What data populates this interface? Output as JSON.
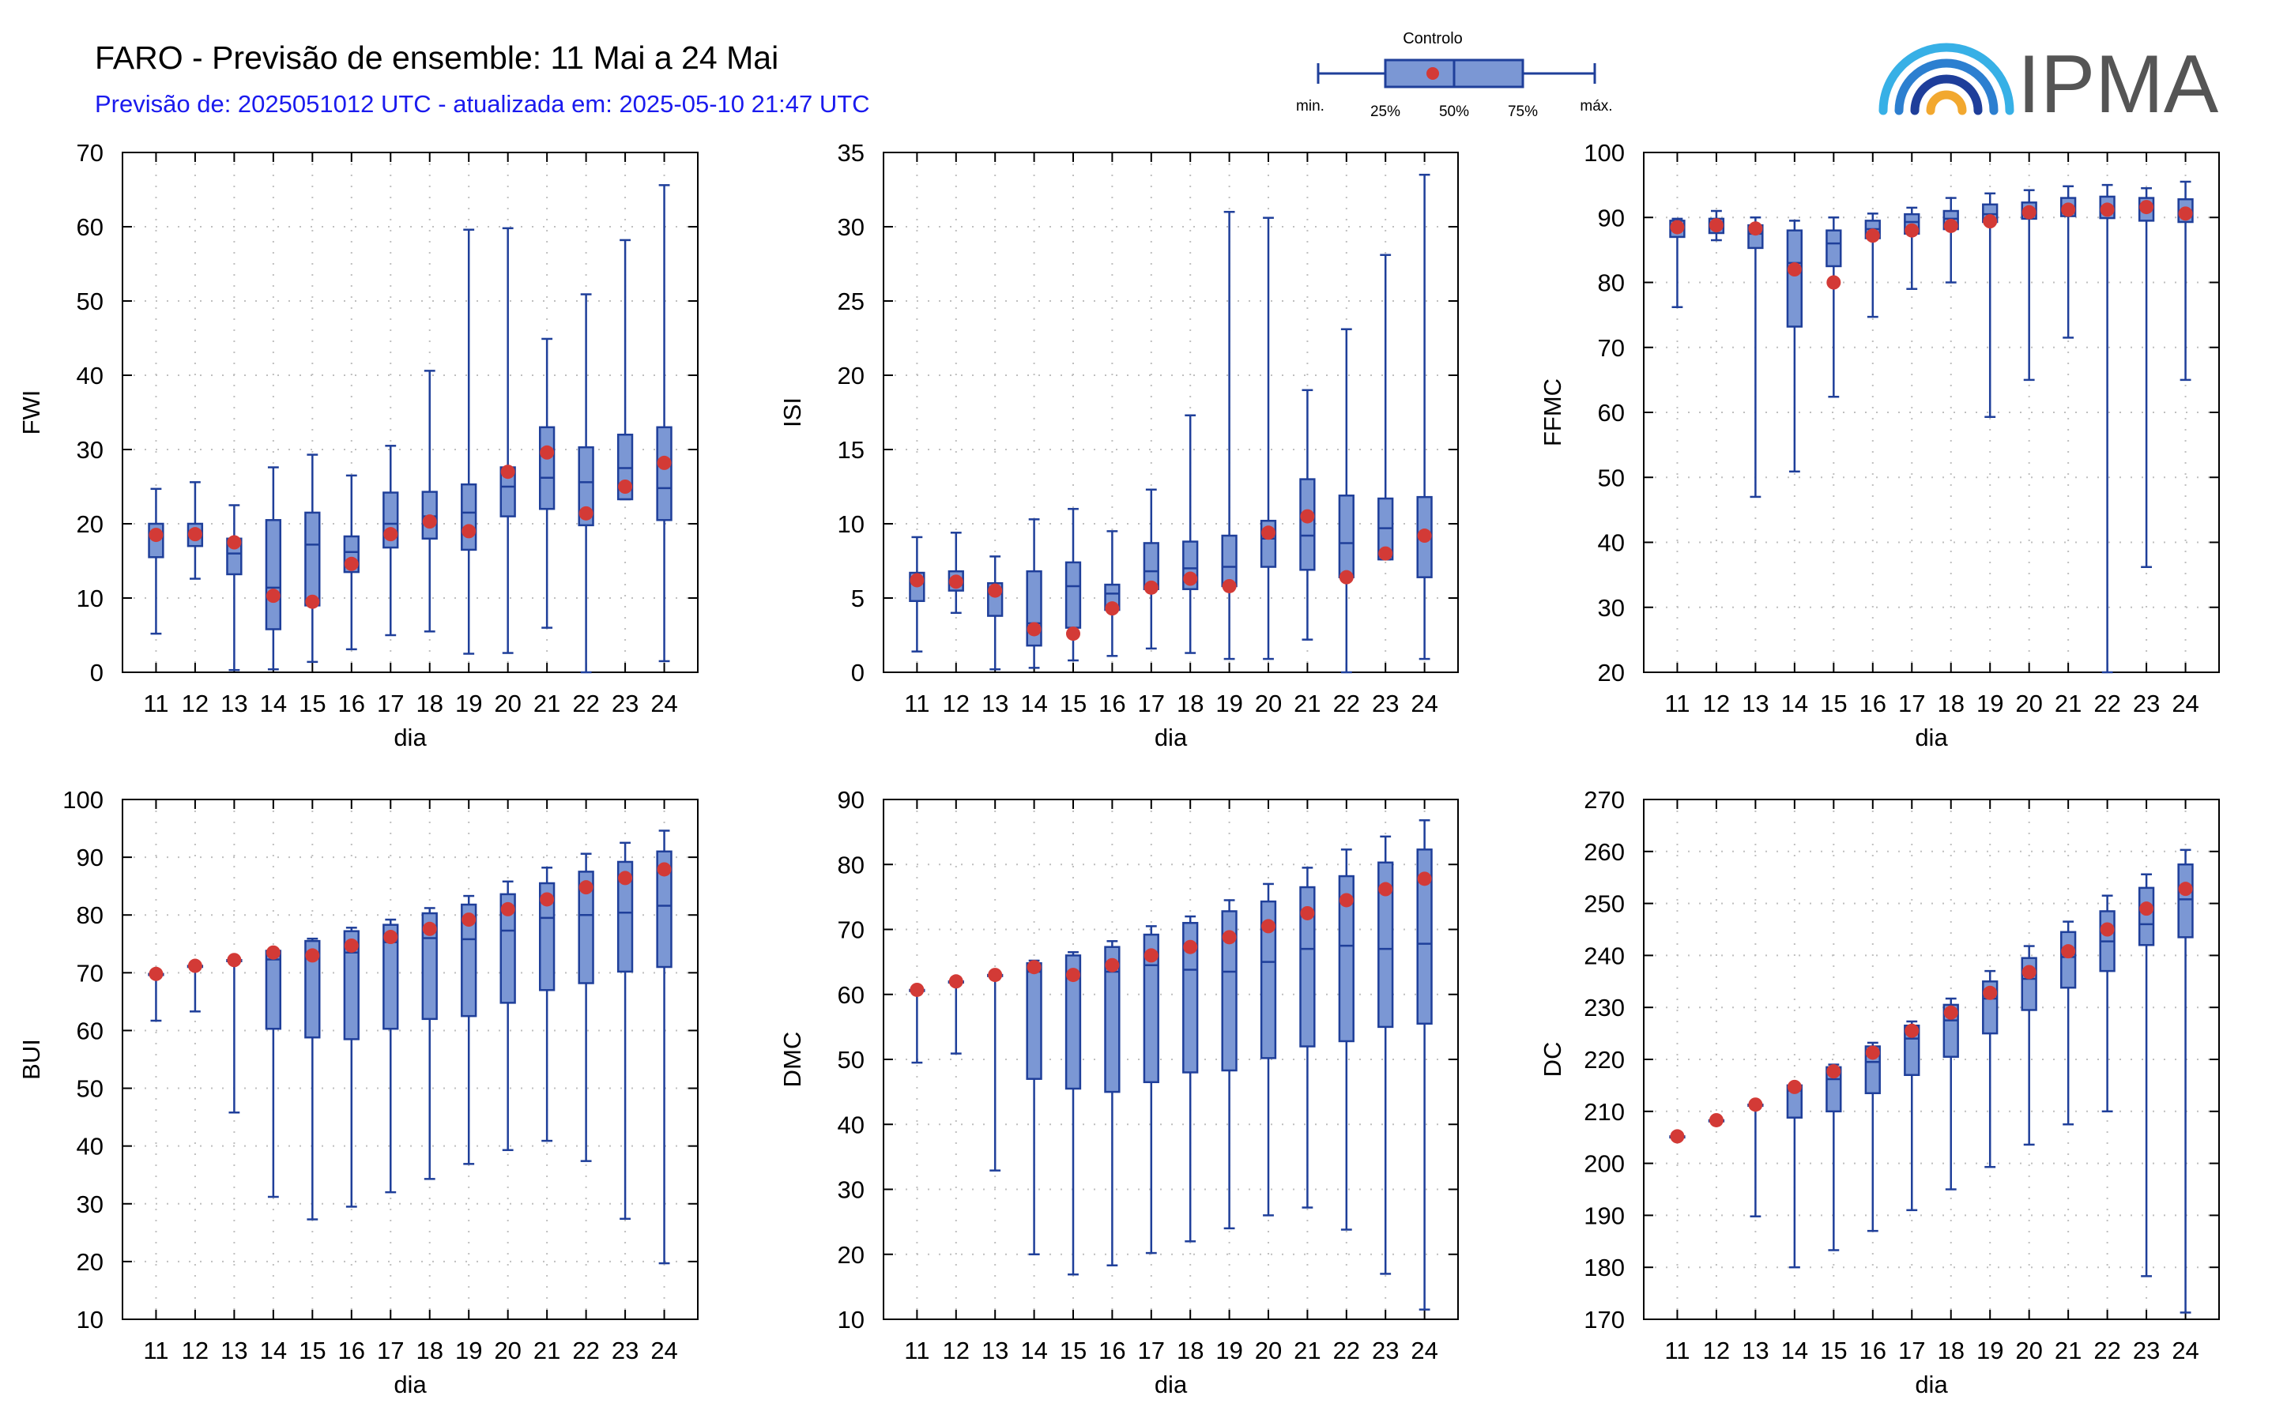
{
  "header": {
    "title": "FARO - Previsão de ensemble: 11 Mai a 24 Mai",
    "subtitle": "Previsão de: 2025051012 UTC - atualizada em: 2025-05-10 21:47 UTC"
  },
  "legend": {
    "control_label": "Controlo",
    "min_label": "min.",
    "p25_label": "25%",
    "p50_label": "50%",
    "p75_label": "75%",
    "max_label": "máx."
  },
  "logo": {
    "text": "IPMA"
  },
  "colors": {
    "box_fill": "#7b97d4",
    "box_stroke": "#1f3f9a",
    "control_marker": "#d33a36",
    "grid": "#bfbfbf",
    "subtitle": "#1a1aee"
  },
  "chart_data": [
    {
      "type": "box",
      "ylabel": "FWI",
      "xlabel": "dia",
      "categories": [
        "11",
        "12",
        "13",
        "14",
        "15",
        "16",
        "17",
        "18",
        "19",
        "20",
        "21",
        "22",
        "23",
        "24"
      ],
      "ylim": [
        0,
        70
      ],
      "yticks": [
        0,
        10,
        20,
        30,
        40,
        50,
        60,
        70
      ],
      "min": [
        5.2,
        12.6,
        0.3,
        0.4,
        1.4,
        3.1,
        5.0,
        5.5,
        2.5,
        2.6,
        6.0,
        0.0,
        23.3,
        1.5
      ],
      "q1": [
        15.5,
        17.0,
        13.2,
        5.8,
        9.0,
        13.5,
        16.8,
        18.0,
        16.5,
        21.0,
        22.0,
        19.8,
        23.3,
        20.5
      ],
      "median": [
        18.5,
        18.5,
        16.0,
        11.4,
        17.2,
        16.2,
        20.0,
        21.0,
        21.5,
        25.0,
        26.2,
        25.6,
        27.5,
        24.8
      ],
      "q3": [
        20.0,
        20.0,
        18.0,
        20.5,
        21.5,
        18.3,
        24.2,
        24.3,
        25.3,
        27.6,
        33.0,
        30.3,
        32.0,
        33.0
      ],
      "max": [
        24.7,
        25.6,
        22.5,
        27.6,
        29.3,
        26.5,
        30.5,
        40.6,
        59.6,
        59.8,
        44.9,
        50.9,
        58.2,
        65.6
      ],
      "control": [
        18.5,
        18.6,
        17.5,
        10.3,
        9.5,
        14.6,
        18.6,
        20.3,
        19.0,
        27.0,
        29.6,
        21.4,
        25.0,
        28.2
      ]
    },
    {
      "type": "box",
      "ylabel": "ISI",
      "xlabel": "dia",
      "categories": [
        "11",
        "12",
        "13",
        "14",
        "15",
        "16",
        "17",
        "18",
        "19",
        "20",
        "21",
        "22",
        "23",
        "24"
      ],
      "ylim": [
        0,
        35
      ],
      "yticks": [
        0,
        5,
        10,
        15,
        20,
        25,
        30,
        35
      ],
      "min": [
        1.4,
        4.0,
        0.2,
        0.3,
        0.8,
        1.1,
        1.6,
        1.3,
        0.9,
        0.9,
        2.2,
        0.0,
        7.6,
        0.9
      ],
      "q1": [
        4.8,
        5.5,
        3.8,
        1.8,
        3.0,
        4.2,
        5.6,
        5.6,
        5.8,
        7.1,
        6.9,
        6.4,
        7.6,
        6.4
      ],
      "median": [
        6.0,
        6.2,
        5.3,
        3.3,
        5.8,
        5.3,
        6.8,
        7.0,
        7.1,
        9.0,
        9.2,
        8.7,
        9.7,
        9.1
      ],
      "q3": [
        6.7,
        6.8,
        6.0,
        6.8,
        7.4,
        5.9,
        8.7,
        8.8,
        9.2,
        10.2,
        13.0,
        11.9,
        11.7,
        11.8
      ],
      "max": [
        9.1,
        9.4,
        7.8,
        10.3,
        11.0,
        9.5,
        12.3,
        17.3,
        31.0,
        30.6,
        19.0,
        23.1,
        28.1,
        33.5
      ],
      "control": [
        6.2,
        6.1,
        5.5,
        2.9,
        2.6,
        4.3,
        5.7,
        6.3,
        5.8,
        9.4,
        10.5,
        6.4,
        8.0,
        9.2
      ]
    },
    {
      "type": "box",
      "ylabel": "FFMC",
      "xlabel": "dia",
      "categories": [
        "11",
        "12",
        "13",
        "14",
        "15",
        "16",
        "17",
        "18",
        "19",
        "20",
        "21",
        "22",
        "23",
        "24"
      ],
      "ylim": [
        20,
        100
      ],
      "yticks": [
        20,
        30,
        40,
        50,
        60,
        70,
        80,
        90,
        100
      ],
      "min": [
        76.2,
        86.5,
        47.0,
        50.9,
        62.4,
        74.7,
        79.0,
        80.0,
        59.3,
        65.0,
        71.5,
        19.8,
        36.2,
        65.0
      ],
      "q1": [
        87.0,
        87.6,
        85.3,
        73.2,
        82.5,
        86.8,
        87.5,
        88.2,
        89.3,
        89.8,
        90.2,
        89.9,
        89.5,
        89.3
      ],
      "median": [
        88.5,
        88.8,
        87.5,
        83.0,
        86.0,
        88.2,
        89.3,
        89.8,
        90.5,
        91.0,
        91.5,
        91.5,
        91.5,
        91.0
      ],
      "q3": [
        89.5,
        89.8,
        88.8,
        88.0,
        88.0,
        89.5,
        90.5,
        91.0,
        92.0,
        92.3,
        93.0,
        93.2,
        93.0,
        92.8
      ],
      "max": [
        89.8,
        91.0,
        90.0,
        89.5,
        90.0,
        90.6,
        91.5,
        93.0,
        93.7,
        94.2,
        94.8,
        95.0,
        94.5,
        95.5
      ],
      "control": [
        88.5,
        88.8,
        88.3,
        82.0,
        80.0,
        87.2,
        88.0,
        88.7,
        89.4,
        90.8,
        91.2,
        91.2,
        91.6,
        90.6
      ]
    },
    {
      "type": "box",
      "ylabel": "BUI",
      "xlabel": "dia",
      "categories": [
        "11",
        "12",
        "13",
        "14",
        "15",
        "16",
        "17",
        "18",
        "19",
        "20",
        "21",
        "22",
        "23",
        "24"
      ],
      "ylim": [
        10,
        100
      ],
      "yticks": [
        10,
        20,
        30,
        40,
        50,
        60,
        70,
        80,
        90,
        100
      ],
      "min": [
        61.7,
        63.3,
        45.8,
        31.2,
        27.3,
        29.5,
        32.0,
        34.3,
        36.9,
        39.3,
        40.9,
        37.4,
        27.4,
        19.7
      ],
      "q1": [
        69.8,
        71.2,
        72.2,
        60.3,
        58.8,
        58.5,
        60.3,
        62.0,
        62.5,
        64.8,
        67.0,
        68.2,
        70.2,
        71.0
      ],
      "median": [
        69.8,
        71.2,
        72.2,
        72.3,
        73.2,
        73.5,
        75.3,
        76.0,
        75.8,
        77.3,
        79.5,
        80.0,
        80.4,
        81.6
      ],
      "q3": [
        69.8,
        71.2,
        72.2,
        73.8,
        75.5,
        77.2,
        78.3,
        80.3,
        81.8,
        83.6,
        85.5,
        87.5,
        89.2,
        91.0
      ],
      "max": [
        69.8,
        71.2,
        72.2,
        73.8,
        75.9,
        77.8,
        79.2,
        81.2,
        83.3,
        85.8,
        88.2,
        90.6,
        92.5,
        94.6
      ],
      "control": [
        69.8,
        71.2,
        72.2,
        73.5,
        73.0,
        74.7,
        76.2,
        77.6,
        79.2,
        81.0,
        82.7,
        84.8,
        86.4,
        87.9
      ]
    },
    {
      "type": "box",
      "ylabel": "DMC",
      "xlabel": "dia",
      "categories": [
        "11",
        "12",
        "13",
        "14",
        "15",
        "16",
        "17",
        "18",
        "19",
        "20",
        "21",
        "22",
        "23",
        "24"
      ],
      "ylim": [
        10,
        90
      ],
      "yticks": [
        10,
        20,
        30,
        40,
        50,
        60,
        70,
        80,
        90
      ],
      "min": [
        49.5,
        50.9,
        32.9,
        20.0,
        16.9,
        18.3,
        20.2,
        22.0,
        24.0,
        26.0,
        27.2,
        23.8,
        17.0,
        11.5
      ],
      "q1": [
        60.7,
        62.0,
        63.0,
        47.0,
        45.5,
        45.0,
        46.5,
        48.0,
        48.3,
        50.2,
        52.0,
        52.8,
        55.0,
        55.5
      ],
      "median": [
        60.7,
        62.0,
        63.0,
        63.5,
        62.5,
        63.5,
        64.5,
        63.8,
        63.5,
        65.0,
        67.0,
        67.5,
        67.0,
        67.8
      ],
      "q3": [
        60.7,
        62.0,
        63.0,
        64.8,
        66.0,
        67.3,
        69.2,
        71.0,
        72.8,
        74.3,
        76.5,
        78.2,
        80.3,
        82.3
      ],
      "max": [
        60.7,
        62.0,
        63.0,
        65.2,
        66.5,
        68.2,
        70.5,
        72.0,
        74.5,
        77.0,
        79.5,
        82.3,
        84.3,
        86.8
      ],
      "control": [
        60.7,
        62.0,
        63.0,
        64.2,
        63.0,
        64.5,
        66.0,
        67.3,
        68.8,
        70.5,
        72.5,
        74.5,
        76.2,
        77.8
      ]
    },
    {
      "type": "box",
      "ylabel": "DC",
      "xlabel": "dia",
      "categories": [
        "11",
        "12",
        "13",
        "14",
        "15",
        "16",
        "17",
        "18",
        "19",
        "20",
        "21",
        "22",
        "23",
        "24"
      ],
      "ylim": [
        170,
        270
      ],
      "yticks": [
        170,
        180,
        190,
        200,
        210,
        220,
        230,
        240,
        250,
        260,
        270
      ],
      "min": [
        205.2,
        208.3,
        189.8,
        180.0,
        183.3,
        187.0,
        191.0,
        195.0,
        199.3,
        203.6,
        207.5,
        210.0,
        178.3,
        171.3
      ],
      "q1": [
        205.2,
        208.3,
        211.3,
        208.8,
        210.0,
        213.5,
        217.0,
        220.5,
        225.0,
        229.5,
        233.8,
        237.0,
        242.0,
        243.5
      ],
      "median": [
        205.2,
        208.3,
        211.3,
        214.0,
        216.2,
        219.5,
        224.0,
        227.5,
        231.7,
        235.5,
        239.7,
        242.7,
        246.0,
        250.8
      ],
      "q3": [
        205.2,
        208.3,
        211.3,
        215.0,
        218.5,
        222.5,
        226.5,
        230.5,
        235.0,
        239.5,
        244.5,
        248.5,
        253.0,
        257.5
      ],
      "max": [
        205.2,
        208.3,
        211.3,
        215.3,
        219.0,
        223.2,
        227.3,
        231.7,
        237.0,
        241.8,
        246.5,
        251.5,
        255.6,
        260.3
      ],
      "control": [
        205.2,
        208.3,
        211.3,
        214.7,
        217.7,
        221.3,
        225.5,
        229.0,
        232.8,
        236.8,
        240.8,
        245.0,
        249.0,
        252.8
      ]
    }
  ]
}
